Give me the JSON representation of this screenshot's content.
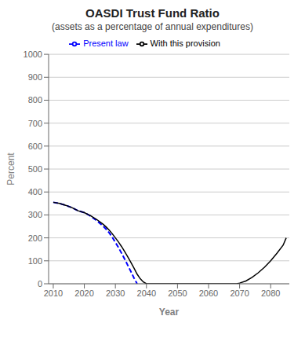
{
  "chart_data": {
    "type": "line",
    "title": "OASDI Trust Fund Ratio",
    "subtitle": "(assets as a percentage of annual expenditures)",
    "xlabel": "Year",
    "ylabel": "Percent",
    "xlim": [
      2008.5,
      2086
    ],
    "ylim": [
      0,
      1000
    ],
    "xticks": [
      2010,
      2020,
      2030,
      2040,
      2050,
      2060,
      2070,
      2080
    ],
    "yticks": [
      0,
      100,
      200,
      300,
      400,
      500,
      600,
      700,
      800,
      900,
      1000
    ],
    "grid": "y",
    "legend": "top",
    "series": [
      {
        "name": "Present law",
        "color": "#0000FF",
        "line_style": "dashed",
        "x": [
          2010,
          2012,
          2014,
          2016,
          2018,
          2020,
          2022,
          2024,
          2026,
          2027,
          2028,
          2029,
          2030,
          2031,
          2032,
          2033,
          2034,
          2035,
          2036,
          2037
        ],
        "values": [
          355,
          350,
          342,
          332,
          318,
          310,
          295,
          275,
          252,
          238,
          222,
          203,
          180,
          158,
          133,
          107,
          80,
          53,
          25,
          0
        ]
      },
      {
        "name": "With this provision",
        "color": "#000000",
        "line_style": "solid",
        "x": [
          2010,
          2012,
          2014,
          2016,
          2018,
          2020,
          2022,
          2024,
          2026,
          2027,
          2028,
          2029,
          2030,
          2031,
          2032,
          2033,
          2034,
          2035,
          2036,
          2037,
          2038,
          2039,
          2040,
          2041,
          2042,
          2043,
          2044,
          2050,
          2060,
          2068,
          2069,
          2070,
          2072,
          2074,
          2076,
          2078,
          2080,
          2082,
          2084,
          2085
        ],
        "values": [
          355,
          350,
          342,
          332,
          318,
          310,
          297,
          280,
          260,
          248,
          234,
          218,
          200,
          182,
          162,
          140,
          117,
          93,
          68,
          42,
          22,
          8,
          0,
          0,
          0,
          0,
          0,
          0,
          0,
          0,
          0,
          3,
          12,
          28,
          48,
          72,
          100,
          133,
          168,
          200
        ]
      }
    ]
  }
}
